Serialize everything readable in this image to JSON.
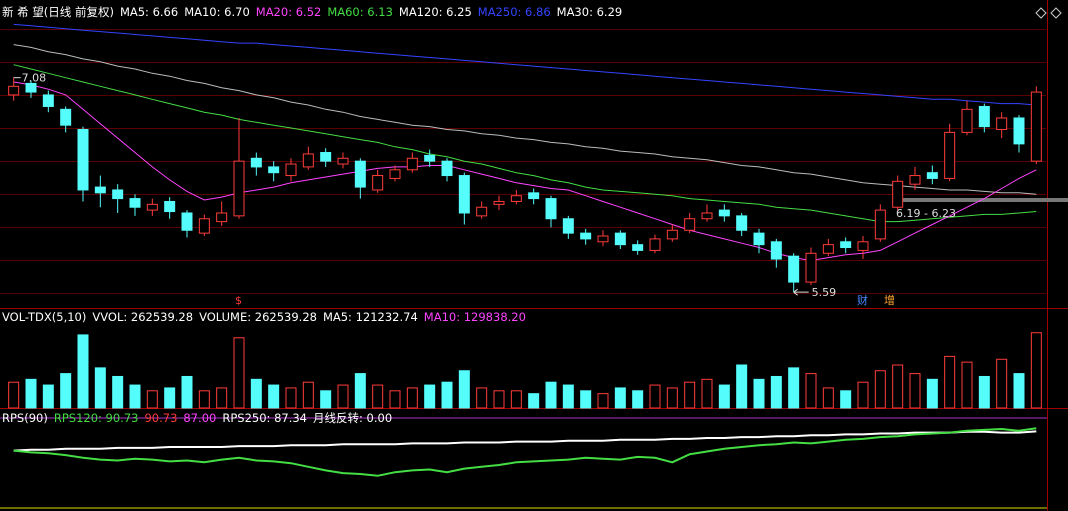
{
  "chart_data": [
    {
      "type": "candlestick",
      "legend": [
        {
          "label": "新 希 望(日线 前复权)",
          "color": "#ffffff"
        },
        {
          "label": "MA5: 6.66",
          "color": "#ffffff"
        },
        {
          "label": "MA10: 6.70",
          "color": "#ffffff"
        },
        {
          "label": "MA20: 6.52",
          "color": "#ff44ff"
        },
        {
          "label": "MA60: 6.13",
          "color": "#44dd44"
        },
        {
          "label": "MA120: 6.25",
          "color": "#ffffff"
        },
        {
          "label": "MA250: 6.86",
          "color": "#3344ff"
        },
        {
          "label": "MA30: 6.29",
          "color": "#ffffff"
        }
      ],
      "open": [
        6.96,
        7.04,
        6.96,
        6.86,
        6.72,
        6.32,
        6.3,
        6.24,
        6.16,
        6.22,
        6.14,
        6.0,
        6.08,
        6.12,
        6.52,
        6.46,
        6.4,
        6.46,
        6.56,
        6.48,
        6.5,
        6.3,
        6.38,
        6.44,
        6.54,
        6.5,
        6.4,
        6.12,
        6.2,
        6.22,
        6.28,
        6.24,
        6.1,
        6.0,
        5.94,
        6.0,
        5.92,
        5.88,
        5.96,
        6.02,
        6.1,
        6.16,
        6.12,
        6.0,
        5.94,
        5.84,
        5.66,
        5.86,
        5.94,
        5.88,
        5.96,
        6.18,
        6.34,
        6.42,
        6.38,
        6.7,
        6.88,
        6.72,
        6.8,
        6.5
      ],
      "high": [
        7.08,
        7.06,
        6.99,
        6.88,
        6.74,
        6.4,
        6.34,
        6.27,
        6.24,
        6.25,
        6.16,
        6.13,
        6.22,
        6.8,
        6.56,
        6.5,
        6.52,
        6.6,
        6.59,
        6.56,
        6.52,
        6.44,
        6.47,
        6.56,
        6.58,
        6.52,
        6.42,
        6.22,
        6.26,
        6.3,
        6.31,
        6.26,
        6.12,
        6.03,
        6.02,
        6.02,
        5.95,
        5.99,
        6.06,
        6.14,
        6.2,
        6.2,
        6.14,
        6.03,
        5.96,
        5.86,
        5.9,
        5.96,
        5.97,
        5.98,
        6.2,
        6.4,
        6.46,
        6.47,
        6.76,
        6.92,
        6.9,
        6.84,
        6.82,
        7.02
      ],
      "low": [
        6.92,
        6.94,
        6.84,
        6.7,
        6.22,
        6.18,
        6.14,
        6.12,
        6.12,
        6.1,
        5.97,
        5.98,
        6.05,
        6.1,
        6.4,
        6.36,
        6.36,
        6.44,
        6.46,
        6.45,
        6.24,
        6.28,
        6.36,
        6.42,
        6.46,
        6.36,
        6.06,
        6.1,
        6.16,
        6.2,
        6.2,
        6.04,
        5.96,
        5.92,
        5.91,
        5.89,
        5.85,
        5.86,
        5.94,
        6.0,
        6.08,
        6.08,
        5.98,
        5.86,
        5.76,
        5.59,
        5.64,
        5.84,
        5.86,
        5.82,
        5.94,
        6.16,
        6.3,
        6.34,
        6.36,
        6.68,
        6.7,
        6.66,
        6.56,
        6.48
      ],
      "close": [
        7.02,
        6.98,
        6.88,
        6.75,
        6.3,
        6.28,
        6.24,
        6.18,
        6.2,
        6.15,
        6.02,
        6.1,
        6.14,
        6.5,
        6.46,
        6.42,
        6.48,
        6.55,
        6.5,
        6.52,
        6.32,
        6.4,
        6.44,
        6.52,
        6.5,
        6.4,
        6.14,
        6.18,
        6.22,
        6.26,
        6.24,
        6.1,
        6.0,
        5.96,
        5.98,
        5.92,
        5.88,
        5.96,
        6.02,
        6.1,
        6.14,
        6.12,
        6.02,
        5.92,
        5.82,
        5.66,
        5.86,
        5.92,
        5.9,
        5.94,
        6.16,
        6.36,
        6.4,
        6.38,
        6.7,
        6.86,
        6.74,
        6.8,
        6.62,
        6.98
      ],
      "up_color": "#ff3c3c",
      "down_color": "#54fcfc",
      "ylim": [
        5.48,
        7.55
      ],
      "lines": [
        {
          "color": "#3344ff",
          "values": [
            7.45,
            7.44,
            7.43,
            7.42,
            7.41,
            7.4,
            7.39,
            7.38,
            7.37,
            7.36,
            7.35,
            7.34,
            7.33,
            7.32,
            7.32,
            7.31,
            7.3,
            7.29,
            7.28,
            7.27,
            7.26,
            7.25,
            7.24,
            7.23,
            7.22,
            7.21,
            7.2,
            7.19,
            7.18,
            7.17,
            7.16,
            7.15,
            7.14,
            7.13,
            7.12,
            7.11,
            7.1,
            7.09,
            7.08,
            7.07,
            7.06,
            7.05,
            7.04,
            7.03,
            7.02,
            7.01,
            7.0,
            6.99,
            6.98,
            6.97,
            6.96,
            6.95,
            6.94,
            6.93,
            6.93,
            6.92,
            6.91,
            6.9,
            6.9,
            6.89
          ]
        },
        {
          "color": "#bbbbbb",
          "values": [
            7.31,
            7.29,
            7.26,
            7.24,
            7.21,
            7.19,
            7.16,
            7.14,
            7.11,
            7.09,
            7.06,
            7.04,
            7.01,
            6.99,
            6.96,
            6.94,
            6.91,
            6.89,
            6.86,
            6.84,
            6.81,
            6.79,
            6.77,
            6.75,
            6.74,
            6.72,
            6.71,
            6.69,
            6.68,
            6.66,
            6.65,
            6.63,
            6.62,
            6.6,
            6.59,
            6.57,
            6.56,
            6.55,
            6.53,
            6.52,
            6.51,
            6.49,
            6.47,
            6.46,
            6.44,
            6.42,
            6.41,
            6.39,
            6.37,
            6.35,
            6.34,
            6.33,
            6.32,
            6.31,
            6.3,
            6.3,
            6.29,
            6.28,
            6.28,
            6.27
          ]
        },
        {
          "color": "#44dd44",
          "values": [
            7.17,
            7.14,
            7.11,
            7.08,
            7.05,
            7.02,
            6.99,
            6.96,
            6.93,
            6.9,
            6.87,
            6.84,
            6.82,
            6.79,
            6.77,
            6.75,
            6.73,
            6.71,
            6.69,
            6.67,
            6.65,
            6.63,
            6.6,
            6.58,
            6.55,
            6.53,
            6.5,
            6.48,
            6.45,
            6.42,
            6.4,
            6.37,
            6.35,
            6.32,
            6.3,
            6.29,
            6.28,
            6.27,
            6.26,
            6.24,
            6.23,
            6.22,
            6.21,
            6.2,
            6.18,
            6.17,
            6.16,
            6.14,
            6.12,
            6.1,
            6.08,
            6.08,
            6.09,
            6.1,
            6.11,
            6.12,
            6.13,
            6.13,
            6.14,
            6.15
          ]
        },
        {
          "color": "#ff44ff",
          "values": [
            7.05,
            7.03,
            7.0,
            6.96,
            6.86,
            6.76,
            6.66,
            6.56,
            6.46,
            6.37,
            6.29,
            6.23,
            6.25,
            6.28,
            6.3,
            6.32,
            6.35,
            6.37,
            6.39,
            6.41,
            6.43,
            6.45,
            6.46,
            6.46,
            6.47,
            6.47,
            6.44,
            6.41,
            6.38,
            6.35,
            6.33,
            6.31,
            6.3,
            6.26,
            6.22,
            6.18,
            6.14,
            6.1,
            6.06,
            6.02,
            5.99,
            5.96,
            5.93,
            5.9,
            5.86,
            5.83,
            5.81,
            5.83,
            5.85,
            5.86,
            5.88,
            5.94,
            6.0,
            6.06,
            6.12,
            6.18,
            6.24,
            6.31,
            6.38,
            6.44
          ]
        }
      ],
      "high_label": {
        "value": 7.08,
        "label": "7.08"
      },
      "low_label": {
        "value": 5.59,
        "label": "5.59"
      },
      "range_label": "6.19 - 6.23",
      "markers": [
        {
          "text": "$",
          "color": "#ff3c3c"
        },
        {
          "text": "财",
          "color": "#4488ff"
        },
        {
          "text": "增",
          "color": "#ffaa33"
        }
      ]
    },
    {
      "type": "bar",
      "legend": [
        {
          "label": "VOL-TDX(5,10)",
          "color": "#ffffff"
        },
        {
          "label": "VVOL: 262539.28",
          "color": "#ffffff"
        },
        {
          "label": "VOLUME: 262539.28",
          "color": "#ffffff"
        },
        {
          "label": "MA5: 121232.74",
          "color": "#ffffff"
        },
        {
          "label": "MA10: 129838.20",
          "color": "#ff44ff"
        }
      ],
      "values": [
        90000,
        100000,
        80000,
        120000,
        255000,
        140000,
        110000,
        80000,
        60000,
        70000,
        110000,
        60000,
        70000,
        245000,
        100000,
        80000,
        70000,
        90000,
        60000,
        80000,
        120000,
        80000,
        60000,
        70000,
        80000,
        90000,
        130000,
        70000,
        60000,
        60000,
        50000,
        90000,
        80000,
        60000,
        50000,
        70000,
        60000,
        80000,
        70000,
        90000,
        100000,
        80000,
        150000,
        100000,
        110000,
        140000,
        120000,
        70000,
        60000,
        90000,
        130000,
        150000,
        120000,
        100000,
        180000,
        160000,
        110000,
        170000,
        120000,
        262539
      ],
      "ylim": [
        0,
        300000
      ]
    },
    {
      "type": "line",
      "legend": [
        {
          "label": "RPS(90)",
          "color": "#ffffff"
        },
        {
          "label": "RPS120: 90.73",
          "color": "#44dd44"
        },
        {
          "label": "90.73",
          "color": "#ff3c3c"
        },
        {
          "label": "87.00",
          "color": "#ff44ff"
        },
        {
          "label": "RPS250: 87.34",
          "color": "#ffffff"
        },
        {
          "label": "月线反转: 0.00",
          "color": "#ffffff"
        }
      ],
      "lines": [
        {
          "color": "#ffffff",
          "values": [
            66,
            67,
            67,
            68,
            68,
            68,
            69,
            69,
            69,
            70,
            70,
            70,
            70,
            71,
            71,
            71,
            72,
            72,
            72,
            73,
            73,
            73,
            73,
            74,
            74,
            74,
            75,
            75,
            75,
            76,
            76,
            76,
            77,
            77,
            77,
            78,
            78,
            78,
            79,
            79,
            80,
            80,
            81,
            81,
            82,
            82,
            83,
            83,
            84,
            84,
            85,
            85,
            86,
            86,
            86,
            87,
            87,
            86,
            86,
            87.34
          ]
        },
        {
          "color": "#44dd44",
          "values": [
            66,
            64,
            63,
            61,
            58,
            56,
            55,
            57,
            56,
            54,
            55,
            53,
            56,
            58,
            55,
            54,
            52,
            48,
            44,
            41,
            40,
            38,
            42,
            44,
            45,
            42,
            46,
            48,
            50,
            53,
            54,
            55,
            56,
            58,
            57,
            56,
            59,
            58,
            53,
            62,
            65,
            68,
            70,
            72,
            73,
            75,
            74,
            76,
            78,
            79,
            81,
            82,
            84,
            85,
            86,
            88,
            89,
            90,
            88,
            90.73
          ]
        }
      ],
      "ylim": [
        0,
        100
      ]
    }
  ]
}
